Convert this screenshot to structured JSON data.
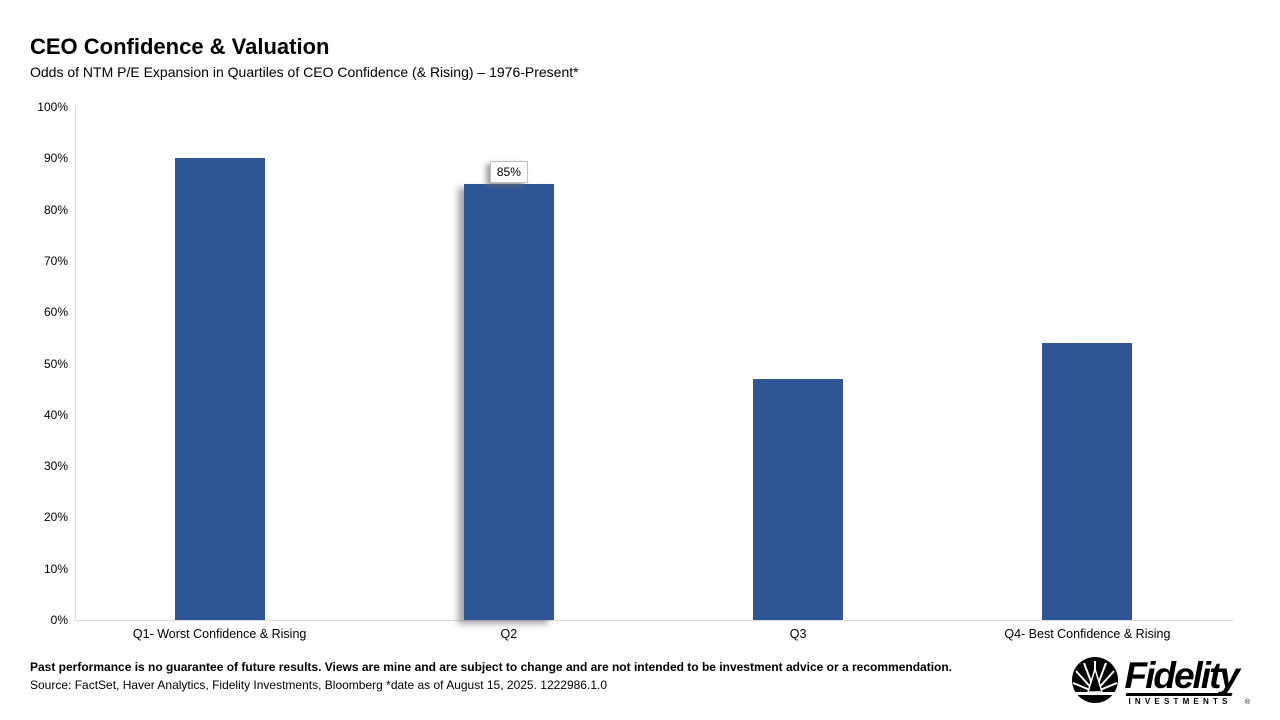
{
  "header": {
    "title": "CEO Confidence & Valuation",
    "subtitle": "Odds of NTM P/E Expansion in Quartiles of CEO Confidence (& Rising) – 1976-Present*"
  },
  "chart_data": {
    "type": "bar",
    "title": "CEO Confidence & Valuation",
    "subtitle": "Odds of NTM P/E Expansion in Quartiles of CEO Confidence (& Rising) – 1976-Present*",
    "categories": [
      "Q1- Worst Confidence & Rising",
      "Q2",
      "Q3",
      "Q4- Best Confidence & Rising"
    ],
    "values": [
      90,
      85,
      47,
      54
    ],
    "xlabel": "",
    "ylabel": "",
    "ylim": [
      0,
      100
    ],
    "ytick_step": 10,
    "ytick_labels": [
      "0%",
      "10%",
      "20%",
      "30%",
      "40%",
      "50%",
      "60%",
      "70%",
      "80%",
      "90%",
      "100%"
    ],
    "grid": false,
    "legend": "none",
    "bar_color": "#2F5597",
    "axis_line_color": "#d9d9d9",
    "data_labels": [
      {
        "category_index": 1,
        "text": "85%"
      }
    ],
    "highlighted_index": 1
  },
  "footer": {
    "disclaimer": "Past performance is no guarantee of future results. Views are mine and are subject to change and are not intended to be investment advice or a recommendation.",
    "source": "Source: FactSet, Haver Analytics, Fidelity Investments, Bloomberg *date as of August 15, 2025. 1222986.1.0"
  },
  "logo": {
    "brand": "Fidelity",
    "registered": "®",
    "sub_brand": "INVESTMENTS",
    "icon": "fidelity-sun-pyramid-icon",
    "color": "#000000"
  }
}
